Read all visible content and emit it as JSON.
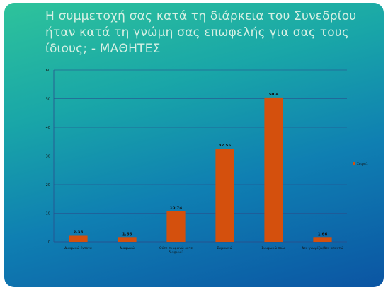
{
  "slide": {
    "title": "Η συμμετοχή σας κατά τη διάρκεια του Συνεδρίου ήταν κατά τη γνώμη σας επωφελής για σας τους ίδιους; - ΜΑΘΗΤΕΣ"
  },
  "chart_data": {
    "type": "bar",
    "categories": [
      "Διαφωνώ έντονα",
      "Διαφωνώ",
      "Ούτε συμφωνώ ούτε διαφωνώ",
      "Συμφωνώ",
      "Συμφωνώ πολύ",
      "Δεν γνωρίζω/Δεν απαντώ"
    ],
    "series": [
      {
        "name": "Σειρά1",
        "values": [
          2.35,
          1.66,
          10.74,
          32.55,
          50.4,
          1.66
        ],
        "labels": [
          "2.35",
          "1.66",
          "10.74",
          "32.55",
          "50.4",
          "1.66"
        ]
      }
    ],
    "yticks": [
      0,
      10,
      20,
      30,
      40,
      50,
      60
    ],
    "ylim": [
      0,
      60
    ],
    "grid": true,
    "legend_position": "right",
    "colors": {
      "bar": "#d4500d",
      "grid": "#2a4f8c",
      "legend_marker": "#d4500d"
    }
  }
}
